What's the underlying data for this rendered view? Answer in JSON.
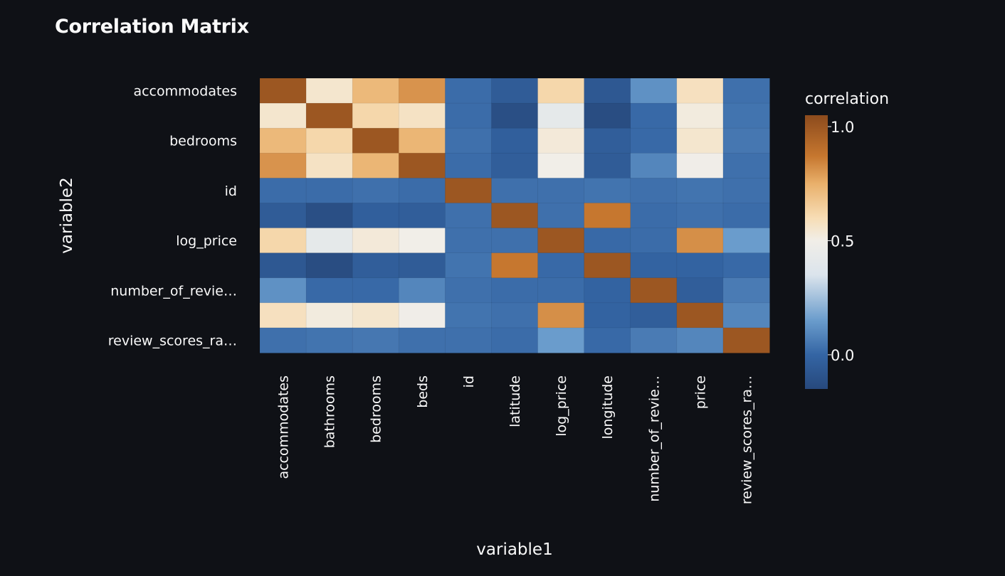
{
  "page": {
    "title": "Correlation Matrix"
  },
  "chart_data": {
    "type": "heatmap",
    "title": "Correlation Matrix",
    "xlabel": "variable1",
    "ylabel": "variable2",
    "x_categories": [
      "accommodates",
      "bathrooms",
      "bedrooms",
      "beds",
      "id",
      "latitude",
      "log_price",
      "longitude",
      "number_of_reviews",
      "price",
      "review_scores_rating"
    ],
    "x_tick_labels": [
      "accommodates",
      "bathrooms",
      "bedrooms",
      "beds",
      "id",
      "latitude",
      "log_price",
      "longitude",
      "number_of_revie…",
      "price",
      "review_scores_ra…"
    ],
    "y_categories": [
      "accommodates",
      "bathrooms",
      "bedrooms",
      "beds",
      "id",
      "latitude",
      "log_price",
      "longitude",
      "number_of_reviews",
      "price",
      "review_scores_rating"
    ],
    "y_tick_labels": [
      "accommodates",
      "",
      "bedrooms",
      "",
      "id",
      "",
      "log_price",
      "",
      "number_of_revie…",
      "",
      "review_scores_ra…"
    ],
    "values": [
      [
        1.0,
        0.55,
        0.72,
        0.81,
        0.02,
        -0.05,
        0.62,
        -0.07,
        0.12,
        0.58,
        0.03
      ],
      [
        0.55,
        1.0,
        0.62,
        0.57,
        0.02,
        -0.12,
        0.42,
        -0.13,
        0.01,
        0.52,
        0.04
      ],
      [
        0.72,
        0.62,
        1.0,
        0.73,
        0.03,
        -0.03,
        0.53,
        -0.04,
        0.01,
        0.55,
        0.05
      ],
      [
        0.81,
        0.57,
        0.73,
        1.0,
        0.02,
        -0.04,
        0.5,
        -0.05,
        0.09,
        0.49,
        0.03
      ],
      [
        0.02,
        0.02,
        0.03,
        0.02,
        1.0,
        0.03,
        0.03,
        0.04,
        0.03,
        0.04,
        0.03
      ],
      [
        -0.05,
        -0.12,
        -0.03,
        -0.04,
        0.03,
        1.0,
        0.03,
        0.87,
        0.02,
        0.03,
        0.02
      ],
      [
        0.62,
        0.42,
        0.53,
        0.5,
        0.03,
        0.03,
        1.0,
        0.01,
        0.02,
        0.82,
        0.15
      ],
      [
        -0.07,
        -0.13,
        -0.04,
        -0.05,
        0.04,
        0.87,
        0.01,
        1.0,
        -0.01,
        -0.01,
        0.01
      ],
      [
        0.12,
        0.01,
        0.01,
        0.09,
        0.03,
        0.02,
        0.02,
        -0.01,
        1.0,
        -0.04,
        0.06
      ],
      [
        0.58,
        0.52,
        0.55,
        0.49,
        0.04,
        0.03,
        0.82,
        -0.01,
        -0.04,
        1.0,
        0.09
      ],
      [
        0.03,
        0.04,
        0.05,
        0.03,
        0.03,
        0.02,
        0.15,
        0.01,
        0.06,
        0.09,
        1.0
      ]
    ],
    "legend": {
      "title": "correlation",
      "ticks": [
        "1.0",
        "0.5",
        "0.0"
      ],
      "tick_values": [
        1.0,
        0.5,
        0.0
      ],
      "range": [
        -0.15,
        1.05
      ],
      "placement": "right"
    },
    "colorscale": {
      "stops": [
        {
          "value": -0.15,
          "color": "#27497d"
        },
        {
          "value": 0.0,
          "color": "#3465a4"
        },
        {
          "value": 0.15,
          "color": "#6a9ccc"
        },
        {
          "value": 0.35,
          "color": "#dbe4ec"
        },
        {
          "value": 0.5,
          "color": "#f1eee8"
        },
        {
          "value": 0.6,
          "color": "#f7ddb5"
        },
        {
          "value": 0.75,
          "color": "#e9b06b"
        },
        {
          "value": 0.87,
          "color": "#c6772f"
        },
        {
          "value": 1.05,
          "color": "#8c4b1d"
        }
      ]
    },
    "background_color": "#0f1116"
  }
}
